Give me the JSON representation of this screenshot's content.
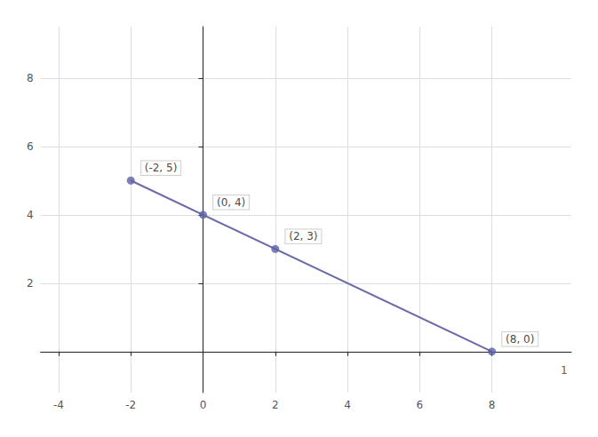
{
  "chart_data": {
    "type": "line",
    "xlim": [
      -4.5,
      10.2
    ],
    "ylim": [
      -1.2,
      9.5
    ],
    "xticks": [
      -4,
      -2,
      0,
      2,
      4,
      6,
      8
    ],
    "yticks": [
      2,
      4,
      6,
      8
    ],
    "grid": true,
    "series": [
      {
        "type": "line",
        "color": "#6b6baa",
        "x": [
          -2,
          8
        ],
        "values": [
          5,
          0
        ]
      },
      {
        "type": "scatter",
        "color": "#5c5fa8",
        "marker": "circle",
        "data_labels": true,
        "x": [
          -2,
          0,
          2,
          8
        ],
        "values": [
          5,
          4,
          3,
          0
        ],
        "value_labels": [
          "(-2, 5)",
          "(0, 4)",
          "(2, 3)",
          "(8, 0)"
        ]
      }
    ],
    "annotations": [
      {
        "text": "1",
        "x": 10,
        "y": -0.55
      }
    ]
  }
}
